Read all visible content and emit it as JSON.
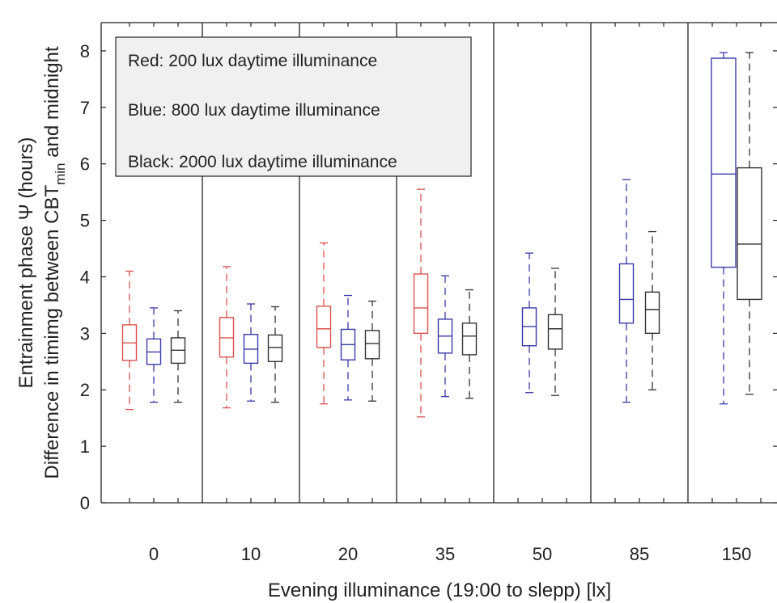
{
  "chart_data": {
    "type": "box",
    "title": "",
    "xlabel": "Evening illuminance (19:00 to slepp) [lx]",
    "ylabel_line1": "Entrainment phase Ψ (hours)",
    "ylabel_line2_main": "Difference in timimg between CBT",
    "ylabel_line2_sub": "min",
    "ylabel_line2_tail": " and midnight",
    "ylim": [
      0,
      8.5
    ],
    "yticks": [
      "0",
      "1",
      "2",
      "3",
      "4",
      "5",
      "6",
      "7",
      "8"
    ],
    "categories": [
      "0",
      "10",
      "20",
      "35",
      "50",
      "85",
      "150"
    ],
    "grid": false,
    "legend": {
      "placement": "top-left",
      "entries": [
        "Red: 200 lux daytime illuminance",
        "Blue: 800 lux daytime illuminance",
        "Black: 2000 lux daytime illuminance"
      ]
    },
    "colors": {
      "red": "#d9534f",
      "blue": "#3a3aa8",
      "black": "#333333"
    },
    "boxes": [
      {
        "group": 0,
        "color": "red",
        "whisker_low": 1.65,
        "q1": 2.52,
        "median": 2.83,
        "q3": 3.15,
        "whisker_high": 4.1
      },
      {
        "group": 0,
        "color": "blue",
        "whisker_low": 1.78,
        "q1": 2.45,
        "median": 2.67,
        "q3": 2.9,
        "whisker_high": 3.45
      },
      {
        "group": 0,
        "color": "black",
        "whisker_low": 1.78,
        "q1": 2.47,
        "median": 2.7,
        "q3": 2.92,
        "whisker_high": 3.4
      },
      {
        "group": 1,
        "color": "red",
        "whisker_low": 1.68,
        "q1": 2.58,
        "median": 2.92,
        "q3": 3.28,
        "whisker_high": 4.18
      },
      {
        "group": 1,
        "color": "blue",
        "whisker_low": 1.8,
        "q1": 2.47,
        "median": 2.72,
        "q3": 2.98,
        "whisker_high": 3.52
      },
      {
        "group": 1,
        "color": "black",
        "whisker_low": 1.78,
        "q1": 2.5,
        "median": 2.75,
        "q3": 2.97,
        "whisker_high": 3.47
      },
      {
        "group": 2,
        "color": "red",
        "whisker_low": 1.75,
        "q1": 2.75,
        "median": 3.08,
        "q3": 3.48,
        "whisker_high": 4.6
      },
      {
        "group": 2,
        "color": "blue",
        "whisker_low": 1.82,
        "q1": 2.53,
        "median": 2.8,
        "q3": 3.07,
        "whisker_high": 3.67
      },
      {
        "group": 2,
        "color": "black",
        "whisker_low": 1.8,
        "q1": 2.55,
        "median": 2.82,
        "q3": 3.05,
        "whisker_high": 3.57
      },
      {
        "group": 3,
        "color": "red",
        "whisker_low": 1.52,
        "q1": 3.0,
        "median": 3.45,
        "q3": 4.05,
        "whisker_high": 5.55
      },
      {
        "group": 3,
        "color": "blue",
        "whisker_low": 1.88,
        "q1": 2.65,
        "median": 2.95,
        "q3": 3.25,
        "whisker_high": 4.02
      },
      {
        "group": 3,
        "color": "black",
        "whisker_low": 1.85,
        "q1": 2.62,
        "median": 2.95,
        "q3": 3.18,
        "whisker_high": 3.77
      },
      {
        "group": 4,
        "color": "blue",
        "whisker_low": 1.95,
        "q1": 2.78,
        "median": 3.12,
        "q3": 3.45,
        "whisker_high": 4.42
      },
      {
        "group": 4,
        "color": "black",
        "whisker_low": 1.9,
        "q1": 2.72,
        "median": 3.08,
        "q3": 3.33,
        "whisker_high": 4.15
      },
      {
        "group": 5,
        "color": "blue",
        "whisker_low": 1.78,
        "q1": 3.18,
        "median": 3.6,
        "q3": 4.23,
        "whisker_high": 5.72
      },
      {
        "group": 5,
        "color": "black",
        "whisker_low": 2.0,
        "q1": 3.0,
        "median": 3.42,
        "q3": 3.73,
        "whisker_high": 4.8
      },
      {
        "group": 6,
        "color": "blue",
        "whisker_low": 1.75,
        "q1": 4.17,
        "median": 5.82,
        "q3": 7.87,
        "whisker_high": 7.97
      },
      {
        "group": 6,
        "color": "black",
        "whisker_low": 1.92,
        "q1": 3.6,
        "median": 4.58,
        "q3": 5.93,
        "whisker_high": 7.97
      }
    ]
  }
}
